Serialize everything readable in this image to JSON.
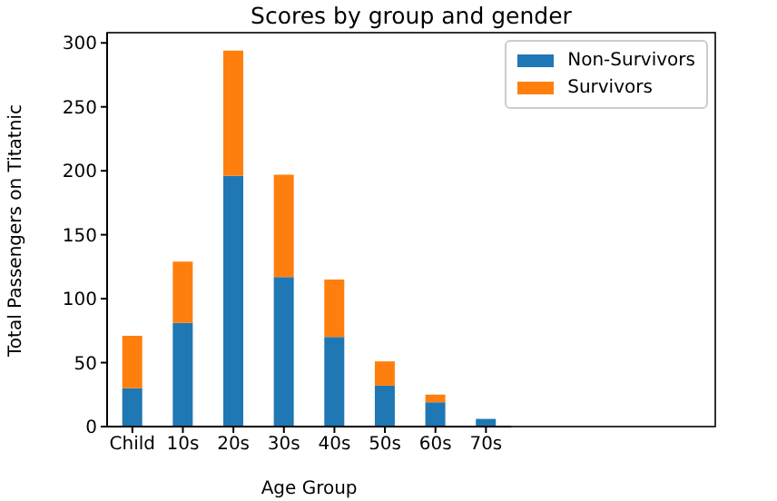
{
  "chart_data": {
    "type": "bar",
    "title": "Scores by group and gender",
    "xlabel": "Age Group",
    "ylabel": "Total Passengers on Titatnic",
    "categories": [
      "Child",
      "10s",
      "20s",
      "30s",
      "40s",
      "50s",
      "60s",
      "70s"
    ],
    "series": [
      {
        "name": "Non-Survivors",
        "color": "#1f77b4",
        "values": [
          30,
          81,
          196,
          117,
          70,
          32,
          19,
          6
        ]
      },
      {
        "name": "Survivors",
        "color": "#ff7f0e",
        "values": [
          41,
          48,
          98,
          80,
          45,
          19,
          6,
          0
        ]
      }
    ],
    "stacked": true,
    "ylim": [
      0,
      308
    ],
    "yticks": [
      0,
      50,
      100,
      150,
      200,
      250,
      300
    ],
    "grid": false,
    "legend": "top right"
  }
}
